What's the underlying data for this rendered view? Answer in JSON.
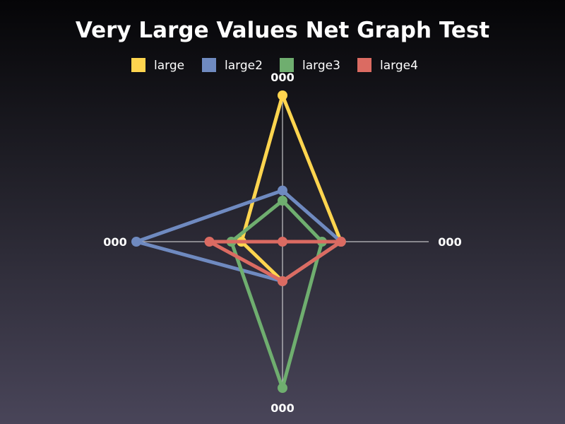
{
  "chart_data": {
    "type": "radar",
    "title": "Very Large Values Net Graph Test",
    "axes": [
      "000",
      "000",
      "000",
      "000"
    ],
    "legend_position": "top-center",
    "grid": true,
    "range": [
      0,
      1000000000000
    ],
    "series": [
      {
        "name": "large",
        "color": "#ffd54f",
        "values": [
          1000000000000,
          400000000000,
          270000000000,
          280000000000
        ]
      },
      {
        "name": "large2",
        "color": "#6f8ac0",
        "values": [
          350000000000,
          400000000000,
          270000000000,
          1000000000000
        ]
      },
      {
        "name": "large3",
        "color": "#6fae6f",
        "values": [
          280000000000,
          270000000000,
          1000000000000,
          350000000000
        ]
      },
      {
        "name": "large4",
        "color": "#db6b62",
        "values": [
          0,
          400000000000,
          270000000000,
          500000000000
        ]
      }
    ]
  }
}
